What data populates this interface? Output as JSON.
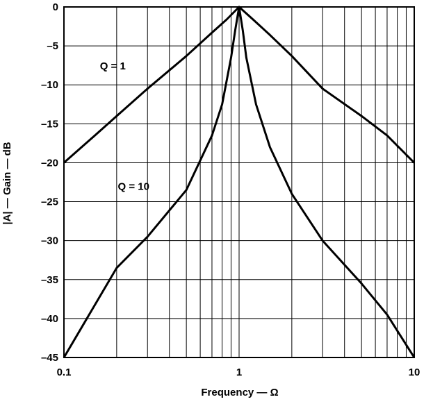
{
  "chart_data": {
    "type": "line",
    "title": "",
    "xlabel": "Frequency — Ω",
    "ylabel": "|A| — Gain — dB",
    "xscale": "log",
    "xlim": [
      0.1,
      10
    ],
    "ylim": [
      -45,
      0
    ],
    "grid": "vertical log gridlines, horizontal every 5 dB",
    "x_tick_labels": [
      "0.1",
      "1",
      "10"
    ],
    "y_tick_labels": [
      "0",
      "–5",
      "–10",
      "–15",
      "–20",
      "–25",
      "–30",
      "–35",
      "–40",
      "–45"
    ],
    "series": [
      {
        "name": "Q = 1",
        "x": [
          0.1,
          0.15,
          0.2,
          0.3,
          0.5,
          0.7,
          0.85,
          1,
          1.2,
          1.5,
          2,
          3,
          5,
          7,
          10
        ],
        "y": [
          -20,
          -16.5,
          -14,
          -10.5,
          -6.3,
          -3.3,
          -1.6,
          0,
          -1.6,
          -3.6,
          -6.3,
          -10.5,
          -14,
          -16.5,
          -20
        ]
      },
      {
        "name": "Q = 10",
        "x": [
          0.1,
          0.2,
          0.3,
          0.5,
          0.7,
          0.8,
          0.9,
          0.95,
          1,
          1.05,
          1.1,
          1.25,
          1.5,
          2,
          3,
          5,
          7,
          10
        ],
        "y": [
          -45,
          -33.5,
          -29.5,
          -23.5,
          -16.5,
          -12.5,
          -6.5,
          -3,
          0,
          -3,
          -6.5,
          -12.5,
          -18,
          -24,
          -30,
          -35.5,
          -39.5,
          -45
        ]
      }
    ],
    "annotations": [
      {
        "text": "Q = 1",
        "x": 0.19,
        "y": -8
      },
      {
        "text": "Q = 10",
        "x": 0.25,
        "y": -23.5
      }
    ]
  }
}
